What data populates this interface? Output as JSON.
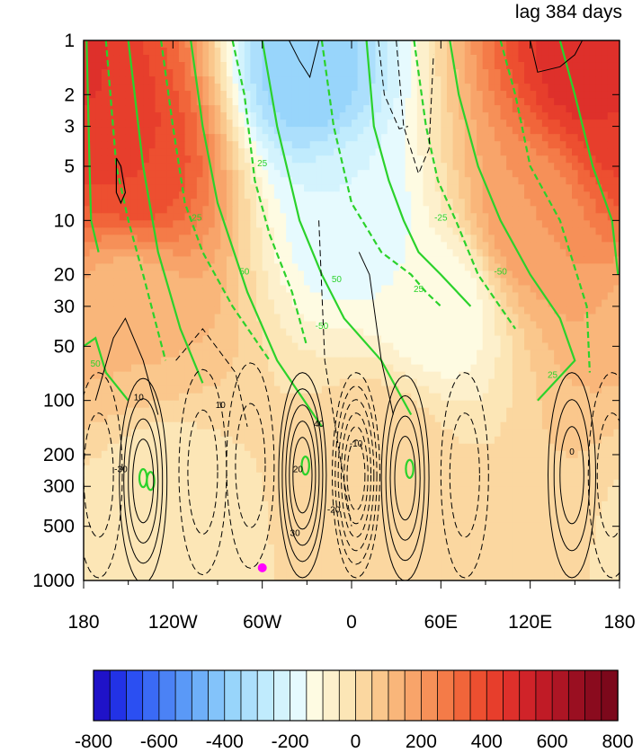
{
  "chart_data": {
    "type": "heatmap",
    "title": "lag 384 days",
    "x_axis": {
      "type": "longitude",
      "range": [
        -180,
        180
      ],
      "ticks": [
        -180,
        -120,
        -60,
        0,
        60,
        120,
        180
      ],
      "tick_labels": [
        "180",
        "120W",
        "60W",
        "0",
        "60E",
        "120E",
        "180"
      ]
    },
    "y_axis": {
      "type": "pressure",
      "scale": "log",
      "reversed": true,
      "range": [
        1000,
        1
      ],
      "ticks": [
        1,
        2,
        3,
        5,
        10,
        20,
        30,
        50,
        100,
        200,
        300,
        500,
        1000
      ],
      "tick_labels": [
        "1",
        "2",
        "3",
        "5",
        "10",
        "20",
        "30",
        "50",
        "100",
        "200",
        "300",
        "500",
        "1000"
      ]
    },
    "colorbar": {
      "levels": [
        -800,
        -750,
        -700,
        -650,
        -600,
        -550,
        -500,
        -450,
        -400,
        -350,
        -300,
        -250,
        -200,
        -150,
        -100,
        -50,
        0,
        50,
        100,
        150,
        200,
        250,
        300,
        350,
        400,
        450,
        500,
        550,
        600,
        650,
        700,
        750,
        800
      ],
      "tick_values": [
        -800,
        -600,
        -400,
        -200,
        0,
        200,
        400,
        600,
        800
      ],
      "tick_labels": [
        "-800",
        "-600",
        "-400",
        "-200",
        "0",
        "200",
        "400",
        "600",
        "800"
      ],
      "colors": [
        "#1f12c8",
        "#2232e6",
        "#2b4ff2",
        "#3a6af5",
        "#4b82f5",
        "#5a99f7",
        "#6eaff9",
        "#83c3fa",
        "#98d5fb",
        "#acdffc",
        "#c0ebfd",
        "#d3f3fd",
        "#e6fafe",
        "#fefbe2",
        "#fdf0cc",
        "#fce6b6",
        "#fbd7a0",
        "#fac78c",
        "#f9b67a",
        "#f8a46a",
        "#f69058",
        "#f47b48",
        "#f1653a",
        "#ed4f30",
        "#e73e2c",
        "#de302b",
        "#d02329",
        "#c01b26",
        "#ad1524",
        "#9a0f21",
        "#8a0b1e",
        "#7c081b"
      ]
    },
    "shading": {
      "label": "color-filled field",
      "features": [
        {
          "lon": -165,
          "lev": 3,
          "value": 450
        },
        {
          "lon": -145,
          "lev": 5,
          "value": 400
        },
        {
          "lon": -30,
          "lev": 1.5,
          "value": -400
        },
        {
          "lon": 0,
          "lev": 10,
          "value": -200
        },
        {
          "lon": 60,
          "lev": 30,
          "value": -150
        },
        {
          "lon": 160,
          "lev": 1.3,
          "value": 500
        },
        {
          "lon": 120,
          "lev": 10,
          "value": 200
        },
        {
          "lon": -150,
          "lev": 30,
          "value": 100
        },
        {
          "lon": -130,
          "lev": 400,
          "value": -50
        },
        {
          "lon": 20,
          "lev": 200,
          "value": 50
        }
      ]
    },
    "contours_black": {
      "label": "black contours (solid positive, dashed negative)",
      "interval": 10,
      "visible_labels": [
        "10",
        "20",
        "30",
        "40",
        "-10",
        "-20",
        "-30",
        "0"
      ]
    },
    "contours_green": {
      "label": "green contours (solid positive, dashed negative)",
      "visible_labels": [
        "25",
        "50",
        "-25",
        "-50"
      ]
    },
    "marker": {
      "lon": -60,
      "lev": 850,
      "color": "#ff00ff"
    }
  }
}
